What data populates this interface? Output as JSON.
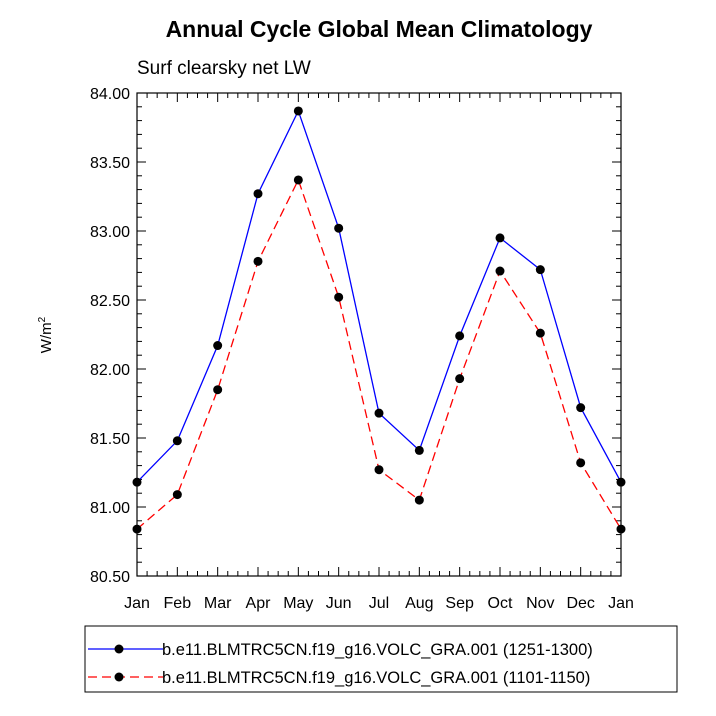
{
  "chart_data": {
    "type": "line",
    "title": "Annual Cycle Global Mean Climatology",
    "subtitle": "Surf clearsky net LW",
    "ylabel_base": "W/m",
    "ylabel_sup": "2",
    "xlabel": "",
    "categories": [
      "Jan",
      "Feb",
      "Mar",
      "Apr",
      "May",
      "Jun",
      "Jul",
      "Aug",
      "Sep",
      "Oct",
      "Nov",
      "Dec",
      "Jan"
    ],
    "ylim": [
      80.5,
      84.0
    ],
    "yticks": [
      "80.50",
      "81.00",
      "81.50",
      "82.00",
      "82.50",
      "83.00",
      "83.50",
      "84.00"
    ],
    "series": [
      {
        "name": "b.e11.BLMTRC5CN.f19_g16.VOLC_GRA.001 (1251-1300)",
        "color": "#0000ff",
        "dash": "solid",
        "values": [
          81.18,
          81.48,
          82.17,
          83.27,
          83.87,
          83.02,
          81.68,
          81.41,
          82.24,
          82.95,
          82.72,
          81.72,
          81.18
        ]
      },
      {
        "name": "b.e11.BLMTRC5CN.f19_g16.VOLC_GRA.001 (1101-1150)",
        "color": "#ff0000",
        "dash": "dashed",
        "values": [
          80.84,
          81.09,
          81.85,
          82.78,
          83.37,
          82.52,
          81.27,
          81.05,
          81.93,
          82.71,
          82.26,
          81.32,
          80.84
        ]
      }
    ],
    "legend_position": "bottom"
  }
}
